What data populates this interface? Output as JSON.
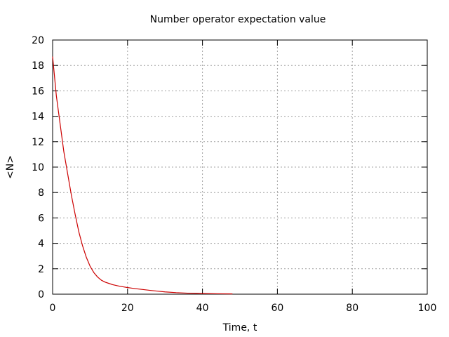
{
  "chart_data": {
    "type": "line",
    "title": "Number operator expectation value",
    "xlabel": "Time, t",
    "ylabel": "<N>",
    "xlim": [
      0,
      100
    ],
    "ylim": [
      0,
      20
    ],
    "xticks": [
      0,
      20,
      40,
      60,
      80,
      100
    ],
    "yticks": [
      0,
      2,
      4,
      6,
      8,
      10,
      12,
      14,
      16,
      18,
      20
    ],
    "grid": true,
    "series": [
      {
        "name": "<N>",
        "color": "#cc0000",
        "x": [
          0,
          1,
          2,
          3,
          4,
          5,
          6,
          7,
          8,
          9,
          10,
          11,
          12,
          13,
          14,
          15,
          16,
          18,
          20,
          22,
          24,
          26,
          28,
          30,
          33,
          36,
          40,
          44,
          48
        ],
        "y": [
          18.7,
          15.6,
          13.4,
          11.2,
          9.5,
          7.8,
          6.3,
          4.9,
          3.8,
          2.9,
          2.2,
          1.7,
          1.35,
          1.1,
          0.95,
          0.85,
          0.75,
          0.62,
          0.52,
          0.44,
          0.37,
          0.3,
          0.24,
          0.18,
          0.12,
          0.08,
          0.05,
          0.03,
          0.02
        ]
      }
    ]
  }
}
